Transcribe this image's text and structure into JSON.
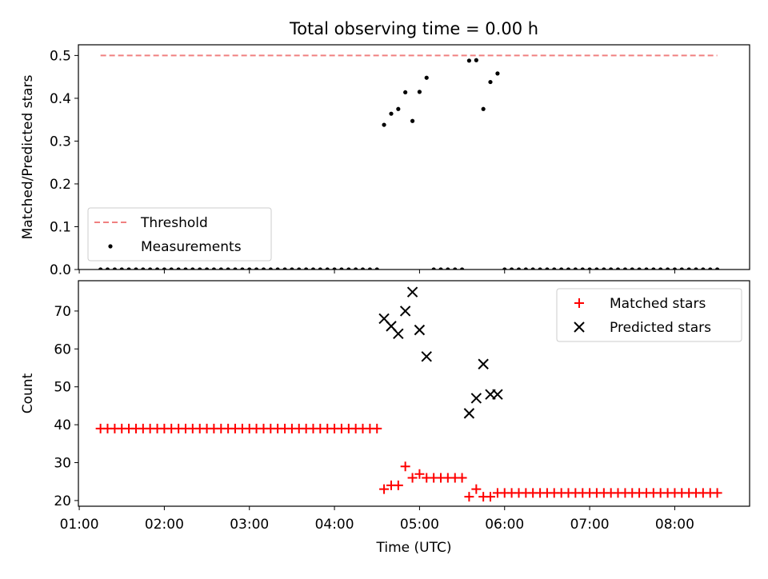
{
  "chart_data": [
    {
      "type": "scatter",
      "title": "Total observing time = 0.00 h",
      "ylabel": "Matched/Predicted stars",
      "xlabel": "",
      "xlim_hours": [
        0.99,
        8.88
      ],
      "ylim": [
        0,
        0.525
      ],
      "x_ticks": [
        "01:00",
        "02:00",
        "03:00",
        "04:00",
        "05:00",
        "06:00",
        "07:00",
        "08:00"
      ],
      "y_ticks": [
        "0.0",
        "0.1",
        "0.2",
        "0.3",
        "0.4",
        "0.5"
      ],
      "legend_position": "lower-left",
      "series": [
        {
          "name": "Threshold",
          "style": "dashed-line",
          "color": "#f08080",
          "points": [
            [
              1.25,
              0.5
            ],
            [
              8.5,
              0.5
            ]
          ]
        },
        {
          "name": "Measurements",
          "style": "dot",
          "color": "#000000",
          "points": [
            [
              1.25,
              0
            ],
            [
              1.333,
              0
            ],
            [
              1.417,
              0
            ],
            [
              1.5,
              0
            ],
            [
              1.583,
              0
            ],
            [
              1.667,
              0
            ],
            [
              1.75,
              0
            ],
            [
              1.833,
              0
            ],
            [
              1.917,
              0
            ],
            [
              2.0,
              0
            ],
            [
              2.083,
              0
            ],
            [
              2.167,
              0
            ],
            [
              2.25,
              0
            ],
            [
              2.333,
              0
            ],
            [
              2.417,
              0
            ],
            [
              2.5,
              0
            ],
            [
              2.583,
              0
            ],
            [
              2.667,
              0
            ],
            [
              2.75,
              0
            ],
            [
              2.833,
              0
            ],
            [
              2.917,
              0
            ],
            [
              3.0,
              0
            ],
            [
              3.083,
              0
            ],
            [
              3.167,
              0
            ],
            [
              3.25,
              0
            ],
            [
              3.333,
              0
            ],
            [
              3.417,
              0
            ],
            [
              3.5,
              0
            ],
            [
              3.583,
              0
            ],
            [
              3.667,
              0
            ],
            [
              3.75,
              0
            ],
            [
              3.833,
              0
            ],
            [
              3.917,
              0
            ],
            [
              4.0,
              0
            ],
            [
              4.083,
              0
            ],
            [
              4.167,
              0
            ],
            [
              4.25,
              0
            ],
            [
              4.333,
              0
            ],
            [
              4.417,
              0
            ],
            [
              4.5,
              0
            ],
            [
              4.583,
              0.338
            ],
            [
              4.667,
              0.364
            ],
            [
              4.75,
              0.375
            ],
            [
              4.833,
              0.414
            ],
            [
              4.917,
              0.347
            ],
            [
              5.0,
              0.415
            ],
            [
              5.083,
              0.448
            ],
            [
              5.167,
              0
            ],
            [
              5.25,
              0
            ],
            [
              5.333,
              0
            ],
            [
              5.417,
              0
            ],
            [
              5.5,
              0
            ],
            [
              5.583,
              0.488
            ],
            [
              5.667,
              0.489
            ],
            [
              5.75,
              0.375
            ],
            [
              5.833,
              0.438
            ],
            [
              5.917,
              0.458
            ],
            [
              6.0,
              0
            ],
            [
              6.083,
              0
            ],
            [
              6.167,
              0
            ],
            [
              6.25,
              0
            ],
            [
              6.333,
              0
            ],
            [
              6.417,
              0
            ],
            [
              6.5,
              0
            ],
            [
              6.583,
              0
            ],
            [
              6.667,
              0
            ],
            [
              6.75,
              0
            ],
            [
              6.833,
              0
            ],
            [
              6.917,
              0
            ],
            [
              7.0,
              0
            ],
            [
              7.083,
              0
            ],
            [
              7.167,
              0
            ],
            [
              7.25,
              0
            ],
            [
              7.333,
              0
            ],
            [
              7.417,
              0
            ],
            [
              7.5,
              0
            ],
            [
              7.583,
              0
            ],
            [
              7.667,
              0
            ],
            [
              7.75,
              0
            ],
            [
              7.833,
              0
            ],
            [
              7.917,
              0
            ],
            [
              8.0,
              0
            ],
            [
              8.083,
              0
            ],
            [
              8.167,
              0
            ],
            [
              8.25,
              0
            ],
            [
              8.333,
              0
            ],
            [
              8.417,
              0
            ],
            [
              8.5,
              0
            ]
          ]
        }
      ]
    },
    {
      "type": "scatter",
      "title": "",
      "ylabel": "Count",
      "xlabel": "Time (UTC)",
      "xlim_hours": [
        0.99,
        8.88
      ],
      "ylim": [
        18.5,
        78.0
      ],
      "x_ticks": [
        "01:00",
        "02:00",
        "03:00",
        "04:00",
        "05:00",
        "06:00",
        "07:00",
        "08:00"
      ],
      "y_ticks": [
        "20",
        "30",
        "40",
        "50",
        "60",
        "70"
      ],
      "legend_position": "upper-right",
      "series": [
        {
          "name": "Matched stars",
          "style": "plus",
          "color": "#ff0000",
          "points": [
            [
              1.25,
              39
            ],
            [
              1.333,
              39
            ],
            [
              1.417,
              39
            ],
            [
              1.5,
              39
            ],
            [
              1.583,
              39
            ],
            [
              1.667,
              39
            ],
            [
              1.75,
              39
            ],
            [
              1.833,
              39
            ],
            [
              1.917,
              39
            ],
            [
              2.0,
              39
            ],
            [
              2.083,
              39
            ],
            [
              2.167,
              39
            ],
            [
              2.25,
              39
            ],
            [
              2.333,
              39
            ],
            [
              2.417,
              39
            ],
            [
              2.5,
              39
            ],
            [
              2.583,
              39
            ],
            [
              2.667,
              39
            ],
            [
              2.75,
              39
            ],
            [
              2.833,
              39
            ],
            [
              2.917,
              39
            ],
            [
              3.0,
              39
            ],
            [
              3.083,
              39
            ],
            [
              3.167,
              39
            ],
            [
              3.25,
              39
            ],
            [
              3.333,
              39
            ],
            [
              3.417,
              39
            ],
            [
              3.5,
              39
            ],
            [
              3.583,
              39
            ],
            [
              3.667,
              39
            ],
            [
              3.75,
              39
            ],
            [
              3.833,
              39
            ],
            [
              3.917,
              39
            ],
            [
              4.0,
              39
            ],
            [
              4.083,
              39
            ],
            [
              4.167,
              39
            ],
            [
              4.25,
              39
            ],
            [
              4.333,
              39
            ],
            [
              4.417,
              39
            ],
            [
              4.5,
              39
            ],
            [
              4.583,
              23
            ],
            [
              4.667,
              24
            ],
            [
              4.75,
              24
            ],
            [
              4.833,
              29
            ],
            [
              4.917,
              26
            ],
            [
              5.0,
              27
            ],
            [
              5.083,
              26
            ],
            [
              5.167,
              26
            ],
            [
              5.25,
              26
            ],
            [
              5.333,
              26
            ],
            [
              5.417,
              26
            ],
            [
              5.5,
              26
            ],
            [
              5.583,
              21
            ],
            [
              5.667,
              23
            ],
            [
              5.75,
              21
            ],
            [
              5.833,
              21
            ],
            [
              5.917,
              22
            ],
            [
              6.0,
              22
            ],
            [
              6.083,
              22
            ],
            [
              6.167,
              22
            ],
            [
              6.25,
              22
            ],
            [
              6.333,
              22
            ],
            [
              6.417,
              22
            ],
            [
              6.5,
              22
            ],
            [
              6.583,
              22
            ],
            [
              6.667,
              22
            ],
            [
              6.75,
              22
            ],
            [
              6.833,
              22
            ],
            [
              6.917,
              22
            ],
            [
              7.0,
              22
            ],
            [
              7.083,
              22
            ],
            [
              7.167,
              22
            ],
            [
              7.25,
              22
            ],
            [
              7.333,
              22
            ],
            [
              7.417,
              22
            ],
            [
              7.5,
              22
            ],
            [
              7.583,
              22
            ],
            [
              7.667,
              22
            ],
            [
              7.75,
              22
            ],
            [
              7.833,
              22
            ],
            [
              7.917,
              22
            ],
            [
              8.0,
              22
            ],
            [
              8.083,
              22
            ],
            [
              8.167,
              22
            ],
            [
              8.25,
              22
            ],
            [
              8.333,
              22
            ],
            [
              8.417,
              22
            ],
            [
              8.5,
              22
            ]
          ]
        },
        {
          "name": "Predicted stars",
          "style": "x",
          "color": "#000000",
          "points": [
            [
              4.583,
              68
            ],
            [
              4.667,
              66
            ],
            [
              4.75,
              64
            ],
            [
              4.833,
              70
            ],
            [
              4.917,
              75
            ],
            [
              5.0,
              65
            ],
            [
              5.083,
              58
            ],
            [
              5.583,
              43
            ],
            [
              5.667,
              47
            ],
            [
              5.75,
              56
            ],
            [
              5.833,
              48
            ],
            [
              5.917,
              48
            ]
          ]
        }
      ]
    }
  ]
}
